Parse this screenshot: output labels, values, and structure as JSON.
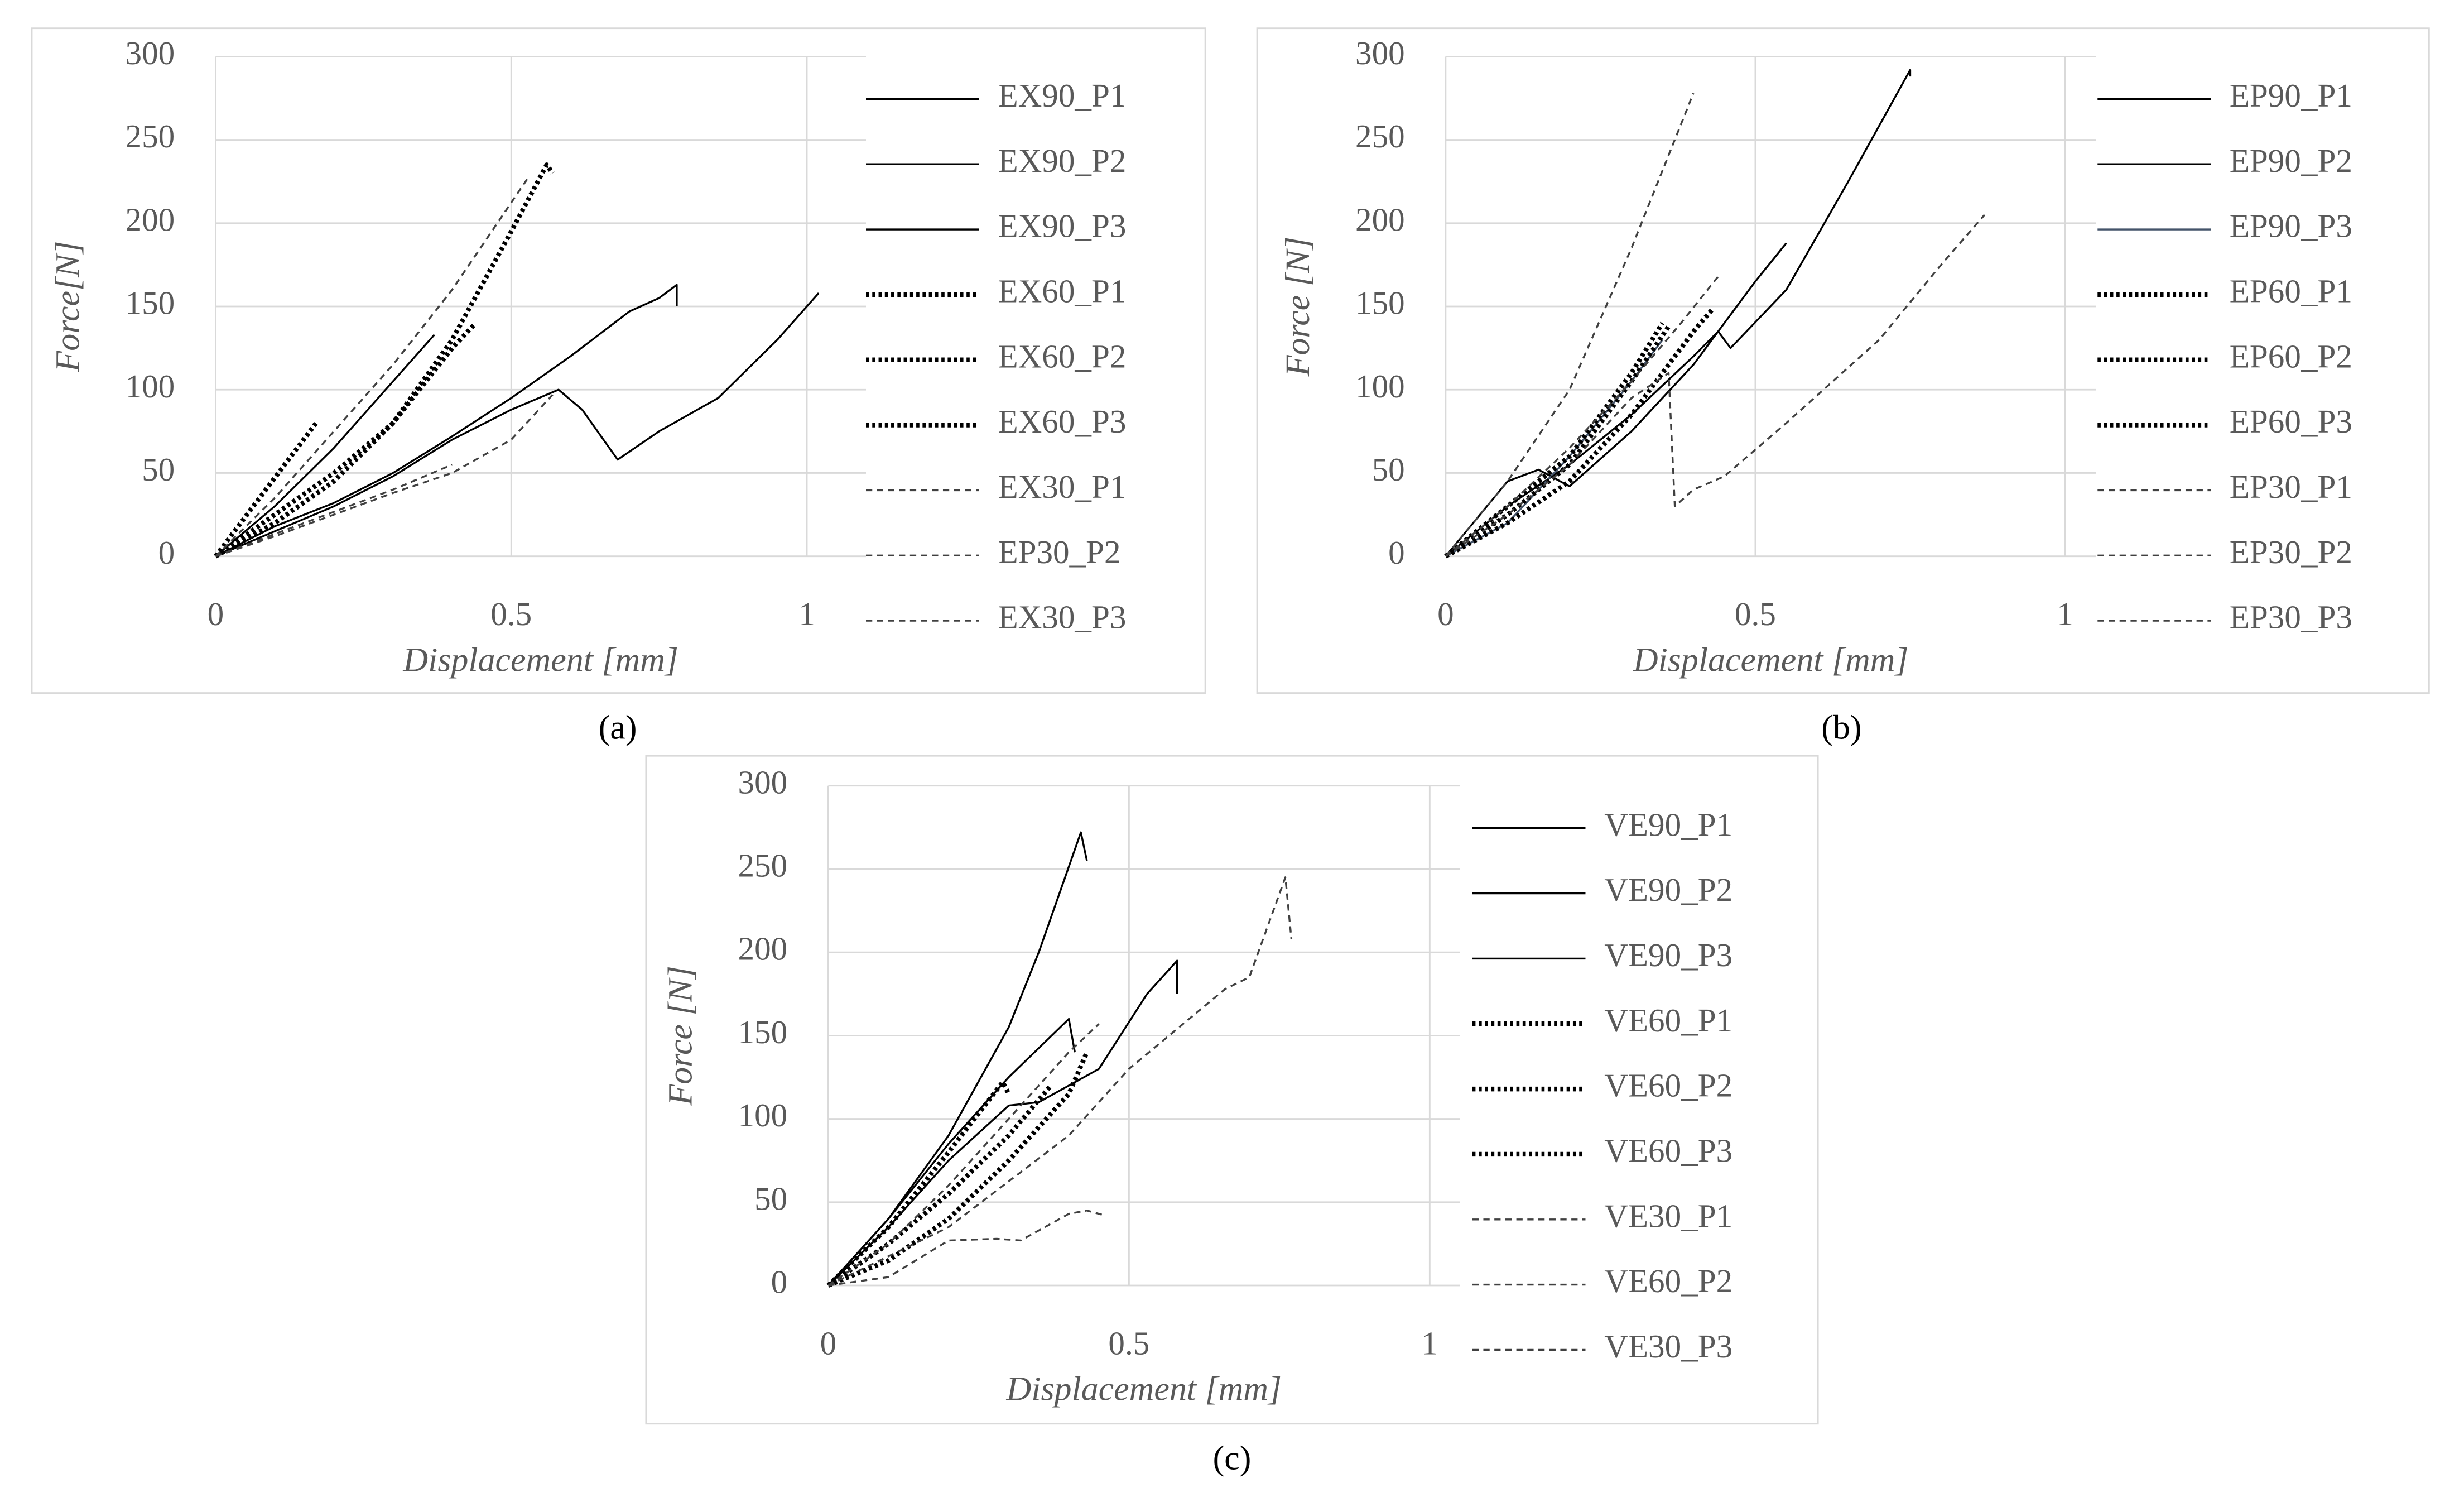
{
  "chart_data": [
    {
      "type": "line",
      "caption": "(a)",
      "x_label": "Displacement [mm]",
      "y_label": "Force[N]",
      "xlim": [
        0,
        1.1
      ],
      "xticks": [
        0,
        0.5,
        1
      ],
      "ylim": [
        0,
        300
      ],
      "yticks": [
        0,
        50,
        100,
        150,
        200,
        250,
        300
      ],
      "grid": true,
      "series": [
        {
          "name": "EX90_P1",
          "color": "#000000",
          "style": "solid",
          "x": [
            0,
            0.1,
            0.2,
            0.3,
            0.4,
            0.5,
            0.6,
            0.7,
            0.75,
            0.78,
            0.78
          ],
          "values": [
            0,
            18,
            32,
            50,
            72,
            95,
            120,
            147,
            155,
            163,
            150
          ]
        },
        {
          "name": "EX90_P2",
          "color": "#000000",
          "style": "solid",
          "x": [
            0,
            0.1,
            0.2,
            0.3,
            0.4,
            0.5,
            0.58,
            0.62,
            0.68,
            0.75,
            0.85,
            0.95,
            1.02
          ],
          "values": [
            0,
            15,
            30,
            48,
            70,
            88,
            100,
            88,
            58,
            75,
            95,
            130,
            158
          ]
        },
        {
          "name": "EX90_P3",
          "color": "#000000",
          "style": "solid",
          "x": [
            0,
            0.1,
            0.2,
            0.3,
            0.37
          ],
          "values": [
            0,
            30,
            65,
            105,
            133
          ]
        },
        {
          "name": "EX60_P1",
          "color": "#000000",
          "style": "dotted",
          "x": [
            0,
            0.17
          ],
          "values": [
            0,
            80
          ]
        },
        {
          "name": "EX60_P2",
          "color": "#000000",
          "style": "dotted",
          "x": [
            0,
            0.1,
            0.2,
            0.3,
            0.4,
            0.5,
            0.56,
            0.57
          ],
          "values": [
            0,
            20,
            45,
            80,
            130,
            195,
            235,
            230
          ]
        },
        {
          "name": "EX60_P3",
          "color": "#000000",
          "style": "dotted",
          "x": [
            0,
            0.1,
            0.2,
            0.3,
            0.4,
            0.44
          ],
          "values": [
            0,
            25,
            50,
            80,
            125,
            140
          ]
        },
        {
          "name": "EX30_P1",
          "color": "#404040",
          "style": "dashed",
          "x": [
            0,
            0.1,
            0.2,
            0.3,
            0.4,
            0.53
          ],
          "values": [
            0,
            35,
            75,
            115,
            160,
            228
          ]
        },
        {
          "name": "EP30_P2",
          "color": "#404040",
          "style": "dashed",
          "x": [
            0,
            0.1,
            0.2,
            0.3,
            0.4,
            0.5,
            0.57
          ],
          "values": [
            0,
            12,
            25,
            38,
            50,
            70,
            97
          ]
        },
        {
          "name": "EX30_P3",
          "color": "#404040",
          "style": "dashed",
          "x": [
            0,
            0.15,
            0.3,
            0.4
          ],
          "values": [
            0,
            20,
            40,
            55
          ]
        }
      ]
    },
    {
      "type": "line",
      "caption": "(b)",
      "x_label": "Displacement [mm]",
      "y_label": "Force [N]",
      "xlim": [
        0,
        1.05
      ],
      "xticks": [
        0,
        0.5,
        1
      ],
      "ylim": [
        0,
        300
      ],
      "yticks": [
        0,
        50,
        100,
        150,
        200,
        250,
        300
      ],
      "grid": true,
      "series": [
        {
          "name": "EP90_P1",
          "color": "#000000",
          "style": "solid",
          "x": [
            0,
            0.1,
            0.2,
            0.3,
            0.4,
            0.44,
            0.46,
            0.55,
            0.65,
            0.75,
            0.75
          ],
          "values": [
            0,
            30,
            55,
            85,
            120,
            135,
            125,
            160,
            225,
            292,
            288
          ]
        },
        {
          "name": "EP90_P2",
          "color": "#000000",
          "style": "solid",
          "x": [
            0,
            0.1,
            0.15,
            0.2,
            0.3,
            0.4,
            0.5,
            0.55
          ],
          "values": [
            0,
            45,
            52,
            42,
            75,
            115,
            165,
            188
          ]
        },
        {
          "name": "EP90_P3",
          "color": "#44546a",
          "style": "solid",
          "x": [
            0,
            0.1,
            0.2,
            0.3,
            0.35
          ],
          "values": [
            0,
            20,
            60,
            105,
            130
          ]
        },
        {
          "name": "EP60_P1",
          "color": "#000000",
          "style": "dotted",
          "x": [
            0,
            0.1,
            0.2,
            0.3,
            0.35
          ],
          "values": [
            0,
            30,
            60,
            110,
            140
          ]
        },
        {
          "name": "EP60_P2",
          "color": "#000000",
          "style": "dotted",
          "x": [
            0,
            0.1,
            0.2,
            0.3,
            0.36
          ],
          "values": [
            0,
            25,
            55,
            105,
            138
          ]
        },
        {
          "name": "EP60_P3",
          "color": "#000000",
          "style": "dotted",
          "x": [
            0,
            0.1,
            0.2,
            0.3,
            0.4,
            0.43
          ],
          "values": [
            0,
            20,
            45,
            85,
            135,
            148
          ]
        },
        {
          "name": "EP30_P1",
          "color": "#404040",
          "style": "dashed",
          "x": [
            0,
            0.1,
            0.2,
            0.3,
            0.4
          ],
          "values": [
            0,
            45,
            100,
            185,
            278
          ]
        },
        {
          "name": "EP30_P2",
          "color": "#404040",
          "style": "dashed",
          "x": [
            0,
            0.1,
            0.2,
            0.3,
            0.36,
            0.37,
            0.4,
            0.45,
            0.55,
            0.7,
            0.8,
            0.87
          ],
          "values": [
            0,
            25,
            55,
            95,
            110,
            30,
            40,
            48,
            80,
            130,
            175,
            205
          ]
        },
        {
          "name": "EP30_P3",
          "color": "#404040",
          "style": "dashed",
          "x": [
            0,
            0.1,
            0.2,
            0.3,
            0.38,
            0.44
          ],
          "values": [
            0,
            30,
            65,
            105,
            140,
            168
          ]
        }
      ]
    },
    {
      "type": "line",
      "caption": "(c)",
      "x_label": "Displacement [mm]",
      "y_label": "Force [N]",
      "xlim": [
        0,
        1.05
      ],
      "xticks": [
        0,
        0.5,
        1
      ],
      "ylim": [
        0,
        300
      ],
      "yticks": [
        0,
        50,
        100,
        150,
        200,
        250,
        300
      ],
      "grid": true,
      "series": [
        {
          "name": "VE90_P1",
          "color": "#000000",
          "style": "solid",
          "x": [
            0,
            0.1,
            0.2,
            0.3,
            0.35,
            0.42,
            0.43
          ],
          "values": [
            0,
            40,
            90,
            155,
            200,
            272,
            255
          ]
        },
        {
          "name": "VE90_P2",
          "color": "#000000",
          "style": "solid",
          "x": [
            0,
            0.1,
            0.2,
            0.3,
            0.35,
            0.45,
            0.53,
            0.58,
            0.58
          ],
          "values": [
            0,
            35,
            75,
            108,
            110,
            130,
            175,
            195,
            175
          ]
        },
        {
          "name": "VE90_P3",
          "color": "#000000",
          "style": "solid",
          "x": [
            0,
            0.1,
            0.2,
            0.3,
            0.4,
            0.41
          ],
          "values": [
            0,
            40,
            85,
            125,
            160,
            140
          ]
        },
        {
          "name": "VE60_P1",
          "color": "#000000",
          "style": "dotted",
          "x": [
            0,
            0.1,
            0.2,
            0.29,
            0.3
          ],
          "values": [
            0,
            35,
            80,
            122,
            115
          ]
        },
        {
          "name": "VE60_P2",
          "color": "#000000",
          "style": "dotted",
          "x": [
            0,
            0.1,
            0.2,
            0.3,
            0.37
          ],
          "values": [
            0,
            25,
            55,
            90,
            120
          ]
        },
        {
          "name": "VE60_P3",
          "color": "#000000",
          "style": "dotted",
          "x": [
            0,
            0.1,
            0.2,
            0.3,
            0.4,
            0.43
          ],
          "values": [
            0,
            15,
            40,
            75,
            115,
            140
          ]
        },
        {
          "name": "VE30_P1",
          "color": "#404040",
          "style": "dashed",
          "x": [
            0,
            0.1,
            0.2,
            0.3,
            0.4,
            0.45
          ],
          "values": [
            0,
            25,
            60,
            100,
            140,
            157
          ]
        },
        {
          "name": "VE60_P2",
          "color": "#404040",
          "style": "dashed",
          "x": [
            0,
            0.2,
            0.4,
            0.5,
            0.6,
            0.66,
            0.7,
            0.76,
            0.77
          ],
          "values": [
            0,
            35,
            90,
            130,
            160,
            178,
            185,
            245,
            208
          ]
        },
        {
          "name": "VE30_P3",
          "color": "#404040",
          "style": "dashed",
          "x": [
            0,
            0.1,
            0.2,
            0.28,
            0.32,
            0.4,
            0.43,
            0.46
          ],
          "values": [
            0,
            5,
            27,
            28,
            27,
            43,
            45,
            42
          ]
        }
      ]
    }
  ]
}
